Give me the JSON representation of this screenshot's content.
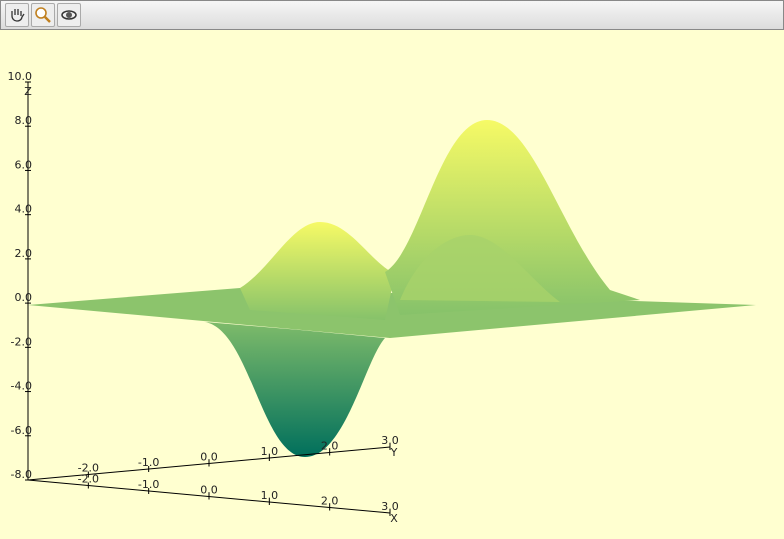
{
  "chart_data": {
    "type": "surface3d",
    "xlabel": "X",
    "ylabel": "Y",
    "zlabel": "Z",
    "xlim": [
      -3,
      3
    ],
    "ylim": [
      -3,
      3
    ],
    "zlim": [
      -8,
      10
    ],
    "xticks": [
      {
        "value": -2,
        "label": "-2.0"
      },
      {
        "value": -1,
        "label": "-1.0"
      },
      {
        "value": 0,
        "label": "0.0"
      },
      {
        "value": 1,
        "label": "1.0"
      },
      {
        "value": 2,
        "label": "2.0"
      },
      {
        "value": 3,
        "label": "3.0"
      }
    ],
    "yticks": [
      {
        "value": -2,
        "label": "-2.0"
      },
      {
        "value": -1,
        "label": "-1.0"
      },
      {
        "value": 0,
        "label": "0.0"
      },
      {
        "value": 1,
        "label": "1.0"
      },
      {
        "value": 2,
        "label": "2.0"
      },
      {
        "value": 3,
        "label": "3.0"
      }
    ],
    "zticks": [
      {
        "value": -8,
        "label": "-8.0"
      },
      {
        "value": -6,
        "label": "-6.0"
      },
      {
        "value": -4,
        "label": "-4.0"
      },
      {
        "value": -2,
        "label": "-2.0"
      },
      {
        "value": 0,
        "label": "0.0"
      },
      {
        "value": 2,
        "label": "2.0"
      },
      {
        "value": 4,
        "label": "4.0"
      },
      {
        "value": 6,
        "label": "6.0"
      },
      {
        "value": 8,
        "label": "8.0"
      },
      {
        "value": 10,
        "label": "10.0"
      }
    ]
  }
}
